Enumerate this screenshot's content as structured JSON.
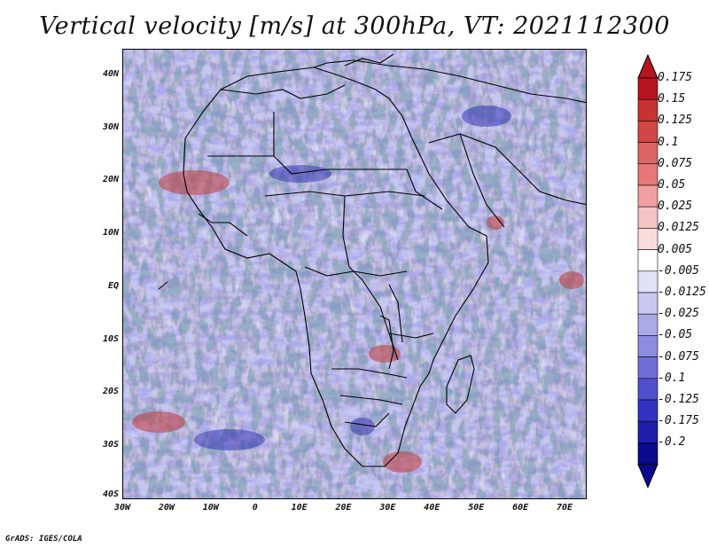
{
  "title": "Vertical velocity [m/s] at 300hPa, VT: 2021112300",
  "footer": "GrADS: IGES/COLA",
  "map": {
    "lat_labels": [
      "40N",
      "30N",
      "20N",
      "10N",
      "EQ",
      "10S",
      "20S",
      "30S",
      "40S"
    ],
    "lat_values": [
      40,
      30,
      20,
      10,
      0,
      -10,
      -20,
      -30,
      -40
    ],
    "lon_labels": [
      "30W",
      "20W",
      "10W",
      "0",
      "10E",
      "20E",
      "30E",
      "40E",
      "50E",
      "60E",
      "70E"
    ],
    "lon_values": [
      -30,
      -20,
      -10,
      0,
      10,
      20,
      30,
      40,
      50,
      60,
      70
    ],
    "lon_range": [
      -30,
      75
    ],
    "lat_range": [
      -40,
      45
    ],
    "field": "vertical velocity",
    "level": "300hPa",
    "valid_time": "2021112300",
    "units": "m/s"
  },
  "colorbar": {
    "labels": [
      "0.175",
      "0.15",
      "0.125",
      "0.1",
      "0.075",
      "0.05",
      "0.025",
      "0.0125",
      "0.005",
      "-0.005",
      "-0.0125",
      "-0.025",
      "-0.05",
      "-0.075",
      "-0.1",
      "-0.125",
      "-0.175",
      "-0.2"
    ],
    "colors": [
      "#b4141e",
      "#c83232",
      "#d24646",
      "#dc6464",
      "#e67878",
      "#f0a0a0",
      "#f5c3c3",
      "#fadcdc",
      "#ffffff",
      "#e1e1f7",
      "#c8c8f0",
      "#aaaae8",
      "#8c8ce1",
      "#6e6ed7",
      "#5050cd",
      "#3232c3",
      "#1e1eaa",
      "#0a0a8c"
    ]
  },
  "colors": {
    "positive_accent": "#d23c3c",
    "negative_accent": "#5a5ad2",
    "coastline": "#000000"
  }
}
